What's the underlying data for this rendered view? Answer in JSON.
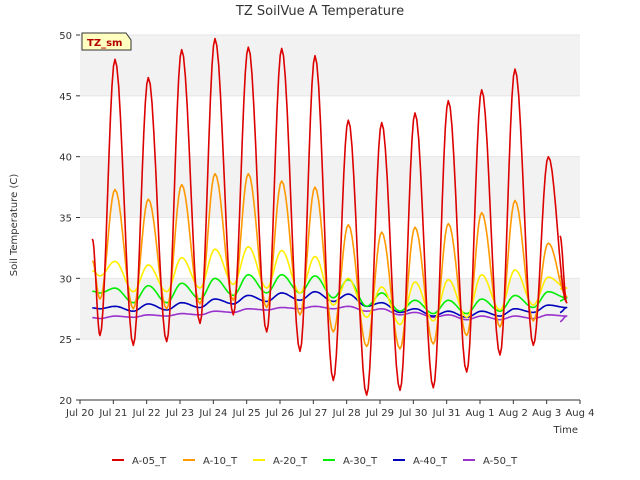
{
  "chart_data": {
    "type": "line",
    "title": "TZ SoilVue A Temperature",
    "xlabel": "Time",
    "ylabel": "Soil Temperature (C)",
    "ylim": [
      20,
      50
    ],
    "yticks": [
      20,
      25,
      30,
      35,
      40,
      45,
      50
    ],
    "xlim": [
      0,
      15
    ],
    "xticks": [
      0,
      1,
      2,
      3,
      4,
      5,
      6,
      7,
      8,
      9,
      10,
      11,
      12,
      13,
      14,
      15
    ],
    "xtick_labels": [
      "Jul 20",
      "Jul 21",
      "Jul 22",
      "Jul 23",
      "Jul 24",
      "Jul 25",
      "Jul 26",
      "Jul 27",
      "Jul 28",
      "Jul 29",
      "Jul 30",
      "Jul 31",
      "Aug 1",
      "Aug 2",
      "Aug 3",
      "Aug 4"
    ],
    "badge": "TZ_sm",
    "grid": "horizontal bands",
    "legend_position": "bottom",
    "days": [
      0,
      1,
      2,
      3,
      4,
      5,
      6,
      7,
      8,
      9,
      10,
      11,
      12,
      13,
      14
    ],
    "series": [
      {
        "name": "A-05_T",
        "color": "#dd0000",
        "peaks": [
          48.0,
          46.5,
          48.8,
          49.7,
          49.0,
          48.9,
          48.3,
          43.0,
          42.8,
          43.6,
          44.6,
          45.5,
          47.2,
          40.0
        ],
        "troughs": [
          25.3,
          24.5,
          24.8,
          26.3,
          27.0,
          25.6,
          24.0,
          21.6,
          20.4,
          20.8,
          21.0,
          22.3,
          23.7,
          24.5,
          28.0
        ]
      },
      {
        "name": "A-10_T",
        "color": "#ff9900",
        "peaks": [
          37.3,
          36.5,
          37.7,
          38.6,
          38.6,
          38.0,
          37.5,
          34.4,
          33.8,
          34.2,
          34.5,
          35.4,
          36.4,
          32.9
        ],
        "troughs": [
          28.3,
          27.5,
          27.5,
          27.9,
          28.2,
          27.6,
          27.0,
          25.6,
          24.4,
          24.2,
          24.6,
          25.3,
          26.0,
          26.5,
          28.5
        ]
      },
      {
        "name": "A-20_T",
        "color": "#ffee00",
        "peaks": [
          31.4,
          31.1,
          31.7,
          32.4,
          32.6,
          32.3,
          31.8,
          30.0,
          29.3,
          29.7,
          29.9,
          30.3,
          30.7,
          30.1
        ],
        "troughs": [
          30.2,
          28.9,
          28.9,
          29.2,
          29.5,
          29.2,
          28.8,
          27.8,
          26.8,
          26.2,
          26.5,
          26.8,
          27.4,
          27.8,
          29.2
        ]
      },
      {
        "name": "A-30_T",
        "color": "#00ee00",
        "peaks": [
          29.2,
          29.4,
          29.6,
          30.0,
          30.3,
          30.3,
          30.2,
          29.9,
          28.8,
          28.2,
          28.2,
          28.3,
          28.6,
          28.9
        ],
        "troughs": [
          28.8,
          28.0,
          28.0,
          28.3,
          28.6,
          28.8,
          28.8,
          28.4,
          27.7,
          27.3,
          27.1,
          27.1,
          27.3,
          27.6,
          28.4
        ]
      },
      {
        "name": "A-40_T",
        "color": "#0000bb",
        "peaks": [
          27.7,
          27.9,
          28.0,
          28.3,
          28.6,
          28.8,
          28.9,
          28.7,
          28.0,
          27.5,
          27.3,
          27.3,
          27.5,
          27.8
        ],
        "troughs": [
          27.5,
          27.3,
          27.4,
          27.6,
          27.9,
          28.1,
          28.2,
          28.1,
          27.7,
          27.2,
          26.9,
          26.8,
          26.9,
          27.2,
          27.6
        ]
      },
      {
        "name": "A-50_T",
        "color": "#9933cc",
        "peaks": [
          26.9,
          27.0,
          27.1,
          27.3,
          27.5,
          27.6,
          27.7,
          27.7,
          27.5,
          27.2,
          27.0,
          26.9,
          26.9,
          27.0
        ],
        "troughs": [
          26.7,
          26.8,
          26.9,
          27.0,
          27.2,
          27.4,
          27.5,
          27.5,
          27.3,
          27.0,
          26.8,
          26.6,
          26.6,
          26.7,
          26.9
        ]
      }
    ]
  }
}
